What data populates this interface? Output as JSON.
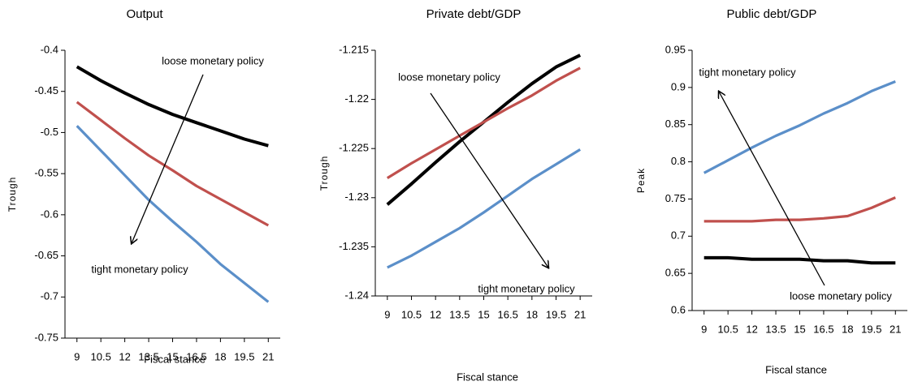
{
  "chart_data": [
    {
      "type": "line",
      "title": "Output",
      "x_label": "Fiscal stance",
      "y_label": "Trough",
      "x": [
        9,
        10.5,
        12,
        13.5,
        15,
        16.5,
        18,
        19.5,
        21
      ],
      "xlim": [
        8.25,
        21.75
      ],
      "xticks": [
        9,
        10.5,
        12,
        13.5,
        15,
        16.5,
        18,
        19.5,
        21
      ],
      "ylim": [
        -0.75,
        -0.4
      ],
      "yticks": [
        -0.4,
        -0.45,
        -0.5,
        -0.55,
        -0.6,
        -0.65,
        -0.7,
        -0.75
      ],
      "series": [
        {
          "color": "#000000",
          "values": [
            -0.42,
            -0.437,
            -0.452,
            -0.466,
            -0.478,
            -0.488,
            -0.498,
            -0.508,
            -0.516
          ]
        },
        {
          "color": "#c0504d",
          "values": [
            -0.463,
            -0.485,
            -0.507,
            -0.528,
            -0.546,
            -0.565,
            -0.581,
            -0.597,
            -0.613
          ]
        },
        {
          "color": "#5b8fc9",
          "values": [
            -0.492,
            -0.522,
            -0.552,
            -0.582,
            -0.608,
            -0.633,
            -0.66,
            -0.683,
            -0.706
          ]
        }
      ],
      "annotations": [
        "loose monetary policy",
        "tight monetary policy"
      ]
    },
    {
      "type": "line",
      "title": "Private debt/GDP",
      "x_label": "Fiscal stance",
      "y_label": "Trough",
      "x": [
        9,
        10.5,
        12,
        13.5,
        15,
        16.5,
        18,
        19.5,
        21
      ],
      "xlim": [
        8.25,
        21.75
      ],
      "xticks": [
        9,
        10.5,
        12,
        13.5,
        15,
        16.5,
        18,
        19.5,
        21
      ],
      "ylim": [
        -1.24,
        -1.215
      ],
      "yticks": [
        -1.215,
        -1.22,
        -1.225,
        -1.23,
        -1.235,
        -1.24
      ],
      "series": [
        {
          "color": "#000000",
          "values": [
            -1.2307,
            -1.2286,
            -1.2264,
            -1.2243,
            -1.2223,
            -1.2203,
            -1.2184,
            -1.2167,
            -1.2155
          ]
        },
        {
          "color": "#c0504d",
          "values": [
            -1.228,
            -1.2265,
            -1.2251,
            -1.2237,
            -1.2223,
            -1.2209,
            -1.2196,
            -1.2181,
            -1.2168
          ]
        },
        {
          "color": "#5b8fc9",
          "values": [
            -1.2371,
            -1.2359,
            -1.2345,
            -1.2331,
            -1.2315,
            -1.2298,
            -1.2281,
            -1.2266,
            -1.2251
          ]
        }
      ],
      "annotations": [
        "loose monetary policy",
        "tight monetary policy"
      ]
    },
    {
      "type": "line",
      "title": "Public debt/GDP",
      "x_label": "Fiscal stance",
      "y_label": "Peak",
      "x": [
        9,
        10.5,
        12,
        13.5,
        15,
        16.5,
        18,
        19.5,
        21
      ],
      "xlim": [
        8.25,
        21.75
      ],
      "xticks": [
        9,
        10.5,
        12,
        13.5,
        15,
        16.5,
        18,
        19.5,
        21
      ],
      "ylim": [
        0.6,
        0.95
      ],
      "yticks": [
        0.95,
        0.9,
        0.85,
        0.8,
        0.75,
        0.7,
        0.65,
        0.6
      ],
      "series": [
        {
          "color": "#5b8fc9",
          "values": [
            0.785,
            0.802,
            0.819,
            0.835,
            0.849,
            0.865,
            0.879,
            0.895,
            0.908
          ]
        },
        {
          "color": "#c0504d",
          "values": [
            0.72,
            0.72,
            0.72,
            0.722,
            0.722,
            0.724,
            0.727,
            0.738,
            0.752
          ]
        },
        {
          "color": "#000000",
          "values": [
            0.671,
            0.671,
            0.669,
            0.669,
            0.669,
            0.667,
            0.667,
            0.664,
            0.664
          ]
        }
      ],
      "annotations": [
        "tight monetary policy",
        "loose monetary policy"
      ]
    }
  ]
}
